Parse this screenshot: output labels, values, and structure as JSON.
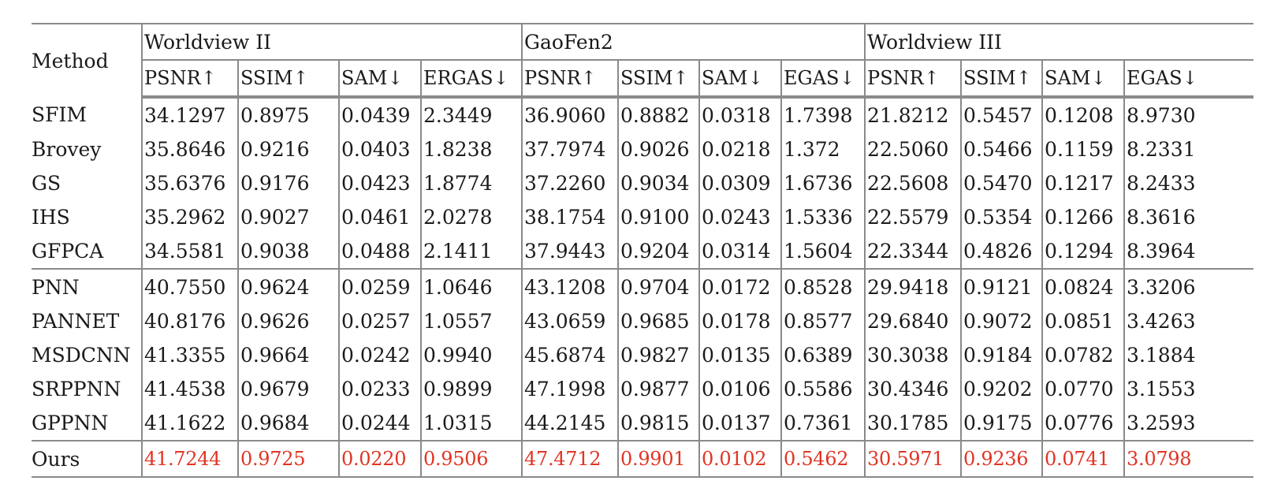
{
  "table": {
    "method_header": "Method",
    "datasets": [
      "Worldview II",
      "GaoFen2",
      "Worldview III"
    ],
    "metric_headers": [
      [
        "PSNR↑",
        "SSIM↑",
        "SAM↓",
        "ERGAS↓"
      ],
      [
        "PSNR↑",
        "SSIM↑",
        "SAM↓",
        "EGAS↓"
      ],
      [
        "PSNR↑",
        "SSIM↑",
        "SAM↓",
        "EGAS↓"
      ]
    ],
    "sections": [
      [
        {
          "method": "SFIM",
          "values": [
            "34.1297",
            "0.8975",
            "0.0439",
            "2.3449",
            "36.9060",
            "0.8882",
            "0.0318",
            "1.7398",
            "21.8212",
            "0.5457",
            "0.1208",
            "8.9730"
          ]
        },
        {
          "method": "Brovey",
          "values": [
            "35.8646",
            "0.9216",
            "0.0403",
            "1.8238",
            "37.7974",
            "0.9026",
            "0.0218",
            "1.372",
            "22.5060",
            "0.5466",
            "0.1159",
            "8.2331"
          ]
        },
        {
          "method": "GS",
          "values": [
            "35.6376",
            "0.9176",
            "0.0423",
            "1.8774",
            "37.2260",
            "0.9034",
            "0.0309",
            "1.6736",
            "22.5608",
            "0.5470",
            "0.1217",
            "8.2433"
          ]
        },
        {
          "method": "IHS",
          "values": [
            "35.2962",
            "0.9027",
            "0.0461",
            "2.0278",
            "38.1754",
            "0.9100",
            "0.0243",
            "1.5336",
            "22.5579",
            "0.5354",
            "0.1266",
            "8.3616"
          ]
        },
        {
          "method": "GFPCA",
          "values": [
            "34.5581",
            "0.9038",
            "0.0488",
            "2.1411",
            "37.9443",
            "0.9204",
            "0.0314",
            "1.5604",
            "22.3344",
            "0.4826",
            "0.1294",
            "8.3964"
          ]
        }
      ],
      [
        {
          "method": "PNN",
          "values": [
            "40.7550",
            "0.9624",
            "0.0259",
            "1.0646",
            "43.1208",
            "0.9704",
            "0.0172",
            "0.8528",
            "29.9418",
            "0.9121",
            "0.0824",
            "3.3206"
          ]
        },
        {
          "method": "PANNET",
          "values": [
            "40.8176",
            "0.9626",
            "0.0257",
            "1.0557",
            "43.0659",
            "0.9685",
            "0.0178",
            "0.8577",
            "29.6840",
            "0.9072",
            "0.0851",
            "3.4263"
          ]
        },
        {
          "method": "MSDCNN",
          "values": [
            "41.3355",
            "0.9664",
            "0.0242",
            "0.9940",
            "45.6874",
            "0.9827",
            "0.0135",
            "0.6389",
            "30.3038",
            "0.9184",
            "0.0782",
            "3.1884"
          ]
        },
        {
          "method": "SRPPNN",
          "values": [
            "41.4538",
            "0.9679",
            "0.0233",
            "0.9899",
            "47.1998",
            "0.9877",
            "0.0106",
            "0.5586",
            "30.4346",
            "0.9202",
            "0.0770",
            "3.1553"
          ]
        },
        {
          "method": "GPPNN",
          "values": [
            "41.1622",
            "0.9684",
            "0.0244",
            "1.0315",
            "44.2145",
            "0.9815",
            "0.0137",
            "0.7361",
            "30.1785",
            "0.9175",
            "0.0776",
            "3.2593"
          ]
        }
      ]
    ],
    "ours": {
      "method": "Ours",
      "values": [
        "41.7244",
        "0.9725",
        "0.0220",
        "0.9506",
        "47.4712",
        "0.9901",
        "0.0102",
        "0.5462",
        "30.5971",
        "0.9236",
        "0.0741",
        "3.0798"
      ]
    }
  },
  "colors": {
    "best_highlight": "#e03524",
    "rule": "#8a8a8a",
    "text": "#1a1a1a"
  }
}
